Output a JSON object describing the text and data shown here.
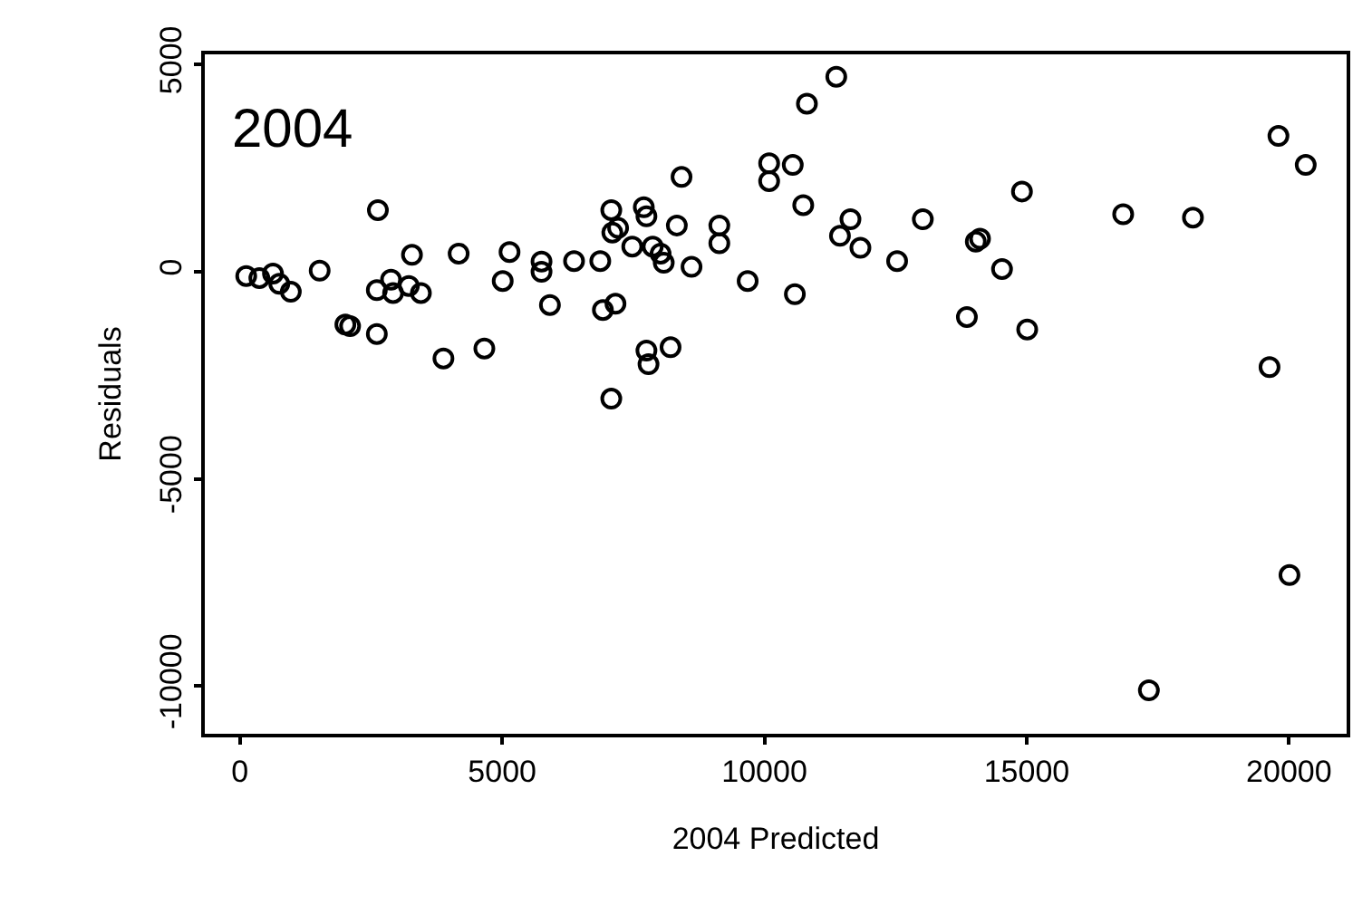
{
  "chart_data": {
    "type": "scatter",
    "xlabel": "2004 Predicted",
    "ylabel": "Residuals",
    "annotations": [
      "2004"
    ],
    "x": [
      120,
      370,
      630,
      750,
      970,
      1520,
      2010,
      2100,
      2630,
      2610,
      2610,
      2880,
      2920,
      3220,
      3280,
      3450,
      3880,
      4170,
      4660,
      5010,
      5140,
      5750,
      5750,
      5910,
      6370,
      6870,
      7080,
      7210,
      7100,
      6920,
      7160,
      7080,
      7480,
      7700,
      7750,
      7750,
      7790,
      7870,
      8020,
      8080,
      8210,
      8330,
      8420,
      8610,
      9140,
      9140,
      9680,
      10090,
      10090,
      10540,
      10580,
      10740,
      10810,
      11370,
      11440,
      11640,
      11830,
      12530,
      13020,
      13860,
      14030,
      14110,
      14530,
      14910,
      15010,
      16840,
      18170,
      19630,
      19800,
      20320,
      20010,
      17330
    ],
    "values": [
      -100,
      -150,
      -40,
      -290,
      -480,
      30,
      -1270,
      -1310,
      1490,
      -440,
      -1500,
      -190,
      -510,
      -340,
      410,
      -510,
      -2090,
      440,
      -1850,
      -220,
      480,
      250,
      0,
      -800,
      260,
      260,
      1490,
      1060,
      950,
      -920,
      -770,
      -3060,
      610,
      1560,
      1340,
      -1900,
      -2230,
      610,
      440,
      220,
      -1820,
      1120,
      2290,
      120,
      1120,
      690,
      -220,
      2620,
      2190,
      2580,
      -540,
      1610,
      4060,
      4710,
      870,
      1270,
      580,
      260,
      1270,
      -1090,
      730,
      800,
      70,
      1940,
      -1390,
      1390,
      1310,
      -2300,
      3280,
      2580,
      -7320,
      -10100
    ],
    "color": "#000000",
    "marker": "circle",
    "xlim": [
      -670,
      21100
    ],
    "ylim": [
      -11150,
      5250
    ],
    "xticks": [
      0,
      5000,
      10000,
      15000,
      20000
    ],
    "yticks": [
      -10000,
      -5000,
      0,
      5000
    ]
  }
}
